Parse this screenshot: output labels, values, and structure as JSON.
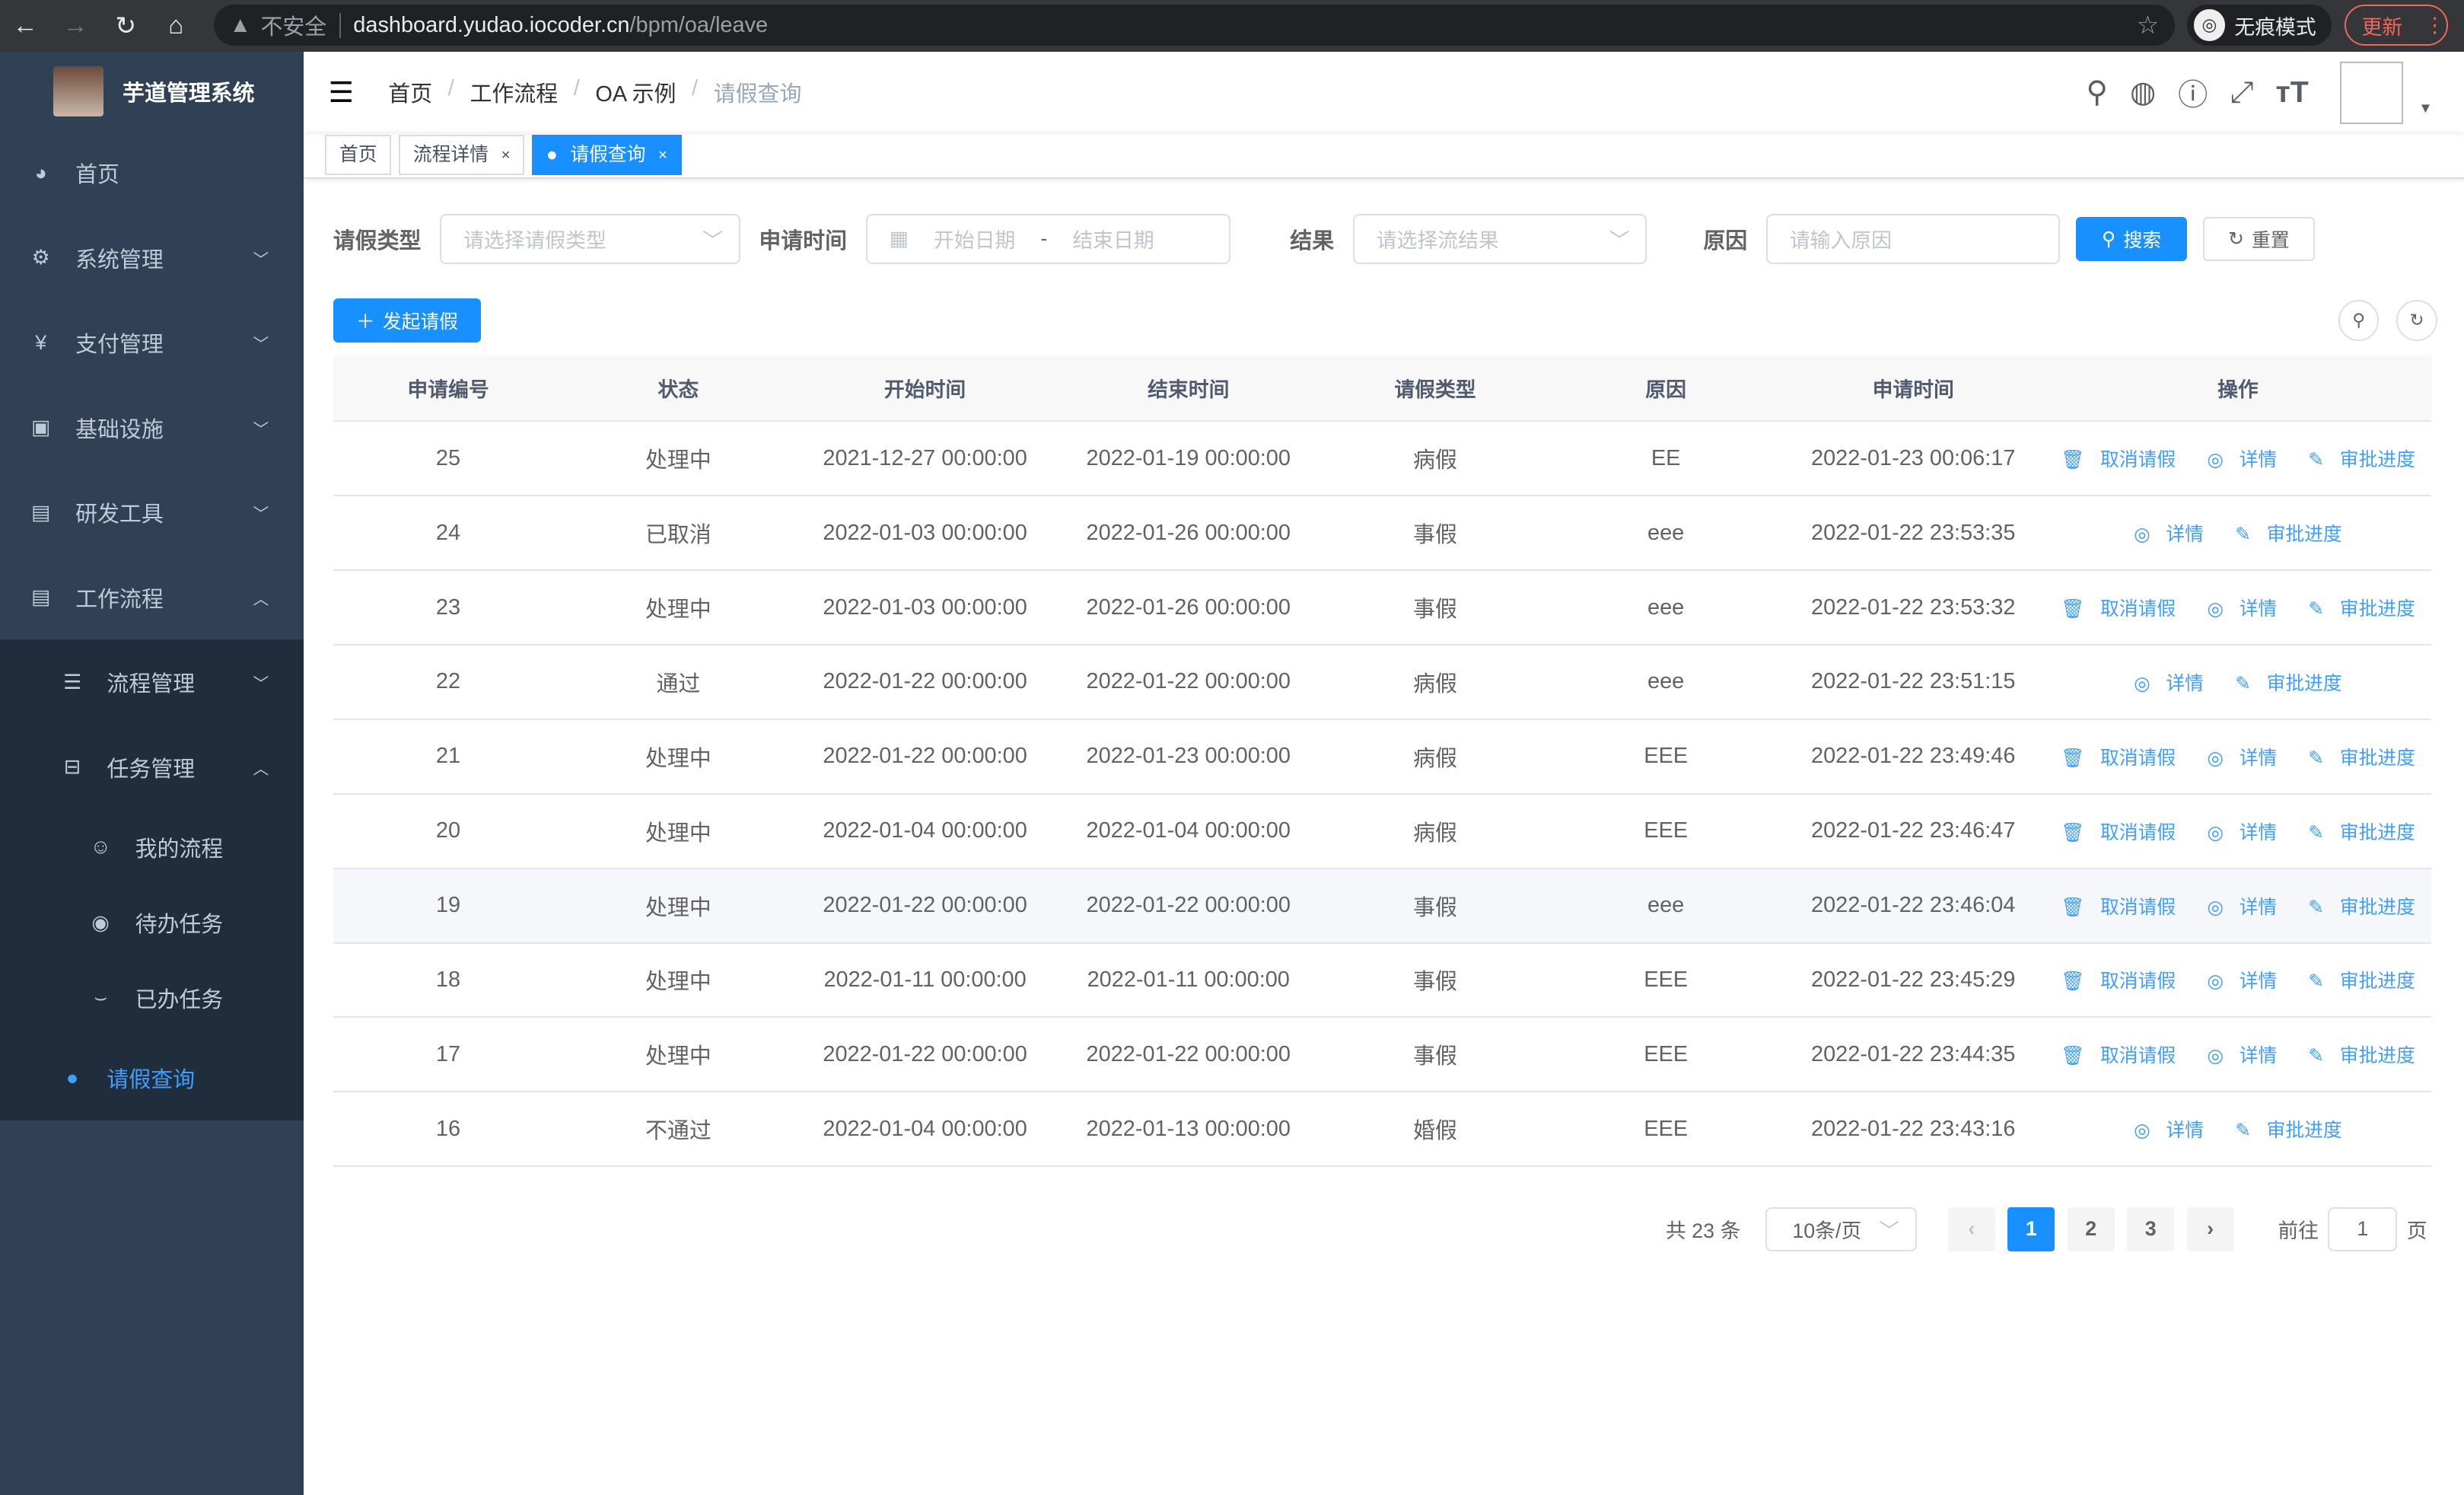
{
  "browser": {
    "insecure": "不安全",
    "host": "dashboard.yudao.iocoder.cn",
    "path": "/bpm/oa/leave",
    "incognito": "无痕模式",
    "update": "更新"
  },
  "sidebar": {
    "title": "芋道管理系统",
    "items": [
      {
        "label": "首页",
        "icon": "dashboard-icon"
      },
      {
        "label": "系统管理",
        "icon": "gear-icon"
      },
      {
        "label": "支付管理",
        "icon": "yen-icon"
      },
      {
        "label": "基础设施",
        "icon": "monitor-icon"
      },
      {
        "label": "研发工具",
        "icon": "toolbox-icon"
      },
      {
        "label": "工作流程",
        "icon": "toolbox-icon"
      }
    ],
    "sub": [
      {
        "label": "流程管理"
      },
      {
        "label": "任务管理"
      }
    ],
    "tasks": [
      {
        "label": "我的流程"
      },
      {
        "label": "待办任务"
      },
      {
        "label": "已办任务"
      }
    ],
    "active": "请假查询"
  },
  "breadcrumb": [
    "首页",
    "工作流程",
    "OA 示例",
    "请假查询"
  ],
  "tags": [
    {
      "label": "首页"
    },
    {
      "label": "流程详情"
    },
    {
      "label": "请假查询"
    }
  ],
  "filters": {
    "type_label": "请假类型",
    "type_ph": "请选择请假类型",
    "time_label": "申请时间",
    "start_ph": "开始日期",
    "dash": "-",
    "end_ph": "结束日期",
    "result_label": "结果",
    "result_ph": "请选择流结果",
    "reason_label": "原因",
    "reason_ph": "请输入原因",
    "search": "搜索",
    "reset": "重置"
  },
  "add_label": "发起请假",
  "table": {
    "headers": [
      "申请编号",
      "状态",
      "开始时间",
      "结束时间",
      "请假类型",
      "原因",
      "申请时间",
      "操作"
    ],
    "rows": [
      {
        "id": "25",
        "status": "处理中",
        "start": "2021-12-27 00:00:00",
        "end": "2022-01-19 00:00:00",
        "type": "病假",
        "reason": "EE",
        "created": "2022-01-23 00:06:17",
        "cancel": true
      },
      {
        "id": "24",
        "status": "已取消",
        "start": "2022-01-03 00:00:00",
        "end": "2022-01-26 00:00:00",
        "type": "事假",
        "reason": "eee",
        "created": "2022-01-22 23:53:35",
        "cancel": false
      },
      {
        "id": "23",
        "status": "处理中",
        "start": "2022-01-03 00:00:00",
        "end": "2022-01-26 00:00:00",
        "type": "事假",
        "reason": "eee",
        "created": "2022-01-22 23:53:32",
        "cancel": true
      },
      {
        "id": "22",
        "status": "通过",
        "start": "2022-01-22 00:00:00",
        "end": "2022-01-22 00:00:00",
        "type": "病假",
        "reason": "eee",
        "created": "2022-01-22 23:51:15",
        "cancel": false
      },
      {
        "id": "21",
        "status": "处理中",
        "start": "2022-01-22 00:00:00",
        "end": "2022-01-23 00:00:00",
        "type": "病假",
        "reason": "EEE",
        "created": "2022-01-22 23:49:46",
        "cancel": true
      },
      {
        "id": "20",
        "status": "处理中",
        "start": "2022-01-04 00:00:00",
        "end": "2022-01-04 00:00:00",
        "type": "病假",
        "reason": "EEE",
        "created": "2022-01-22 23:46:47",
        "cancel": true
      },
      {
        "id": "19",
        "status": "处理中",
        "start": "2022-01-22 00:00:00",
        "end": "2022-01-22 00:00:00",
        "type": "事假",
        "reason": "eee",
        "created": "2022-01-22 23:46:04",
        "cancel": true
      },
      {
        "id": "18",
        "status": "处理中",
        "start": "2022-01-11 00:00:00",
        "end": "2022-01-11 00:00:00",
        "type": "事假",
        "reason": "EEE",
        "created": "2022-01-22 23:45:29",
        "cancel": true
      },
      {
        "id": "17",
        "status": "处理中",
        "start": "2022-01-22 00:00:00",
        "end": "2022-01-22 00:00:00",
        "type": "事假",
        "reason": "EEE",
        "created": "2022-01-22 23:44:35",
        "cancel": true
      },
      {
        "id": "16",
        "status": "不通过",
        "start": "2022-01-04 00:00:00",
        "end": "2022-01-13 00:00:00",
        "type": "婚假",
        "reason": "EEE",
        "created": "2022-01-22 23:43:16",
        "cancel": false
      }
    ],
    "ops": {
      "cancel": "取消请假",
      "detail": "详情",
      "progress": "审批进度"
    }
  },
  "pagination": {
    "total": "共 23 条",
    "size": "10条/页",
    "pages": [
      "1",
      "2",
      "3"
    ],
    "current": "1",
    "goto": "前往",
    "goto_value": "1",
    "page_suffix": "页"
  },
  "colors": {
    "primary": "#1890ff",
    "sidebar": "#304156",
    "link": "#409eff"
  }
}
